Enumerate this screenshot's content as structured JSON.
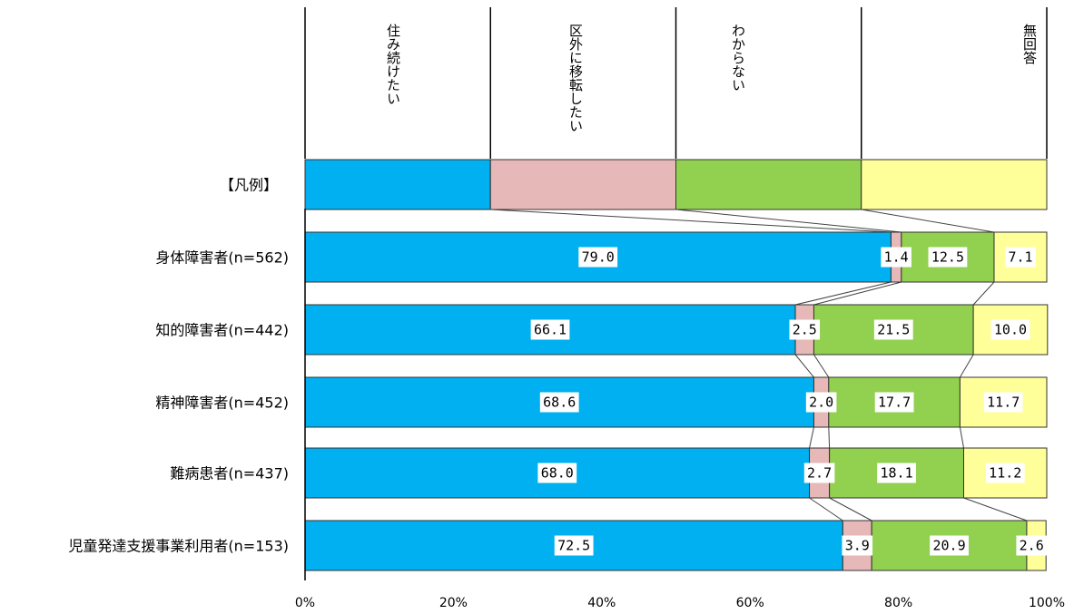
{
  "chart_data": {
    "type": "bar",
    "orientation": "horizontal",
    "stacked": "100%",
    "legend_row_label": "【凡例】",
    "categories": [
      "身体障害者(n=562)",
      "知的障害者(n=442)",
      "精神障害者(n=452)",
      "難病患者(n=437)",
      "児童発達支援事業利用者(n=153)"
    ],
    "series": [
      {
        "name": "住み続けたい",
        "color": "#00b0f0",
        "values": [
          79.0,
          66.1,
          68.6,
          68.0,
          72.5
        ],
        "labels": [
          "79.0",
          "66.1",
          "68.6",
          "68.0",
          "72.5"
        ]
      },
      {
        "name": "区外に移転したい",
        "color": "#e6b8b7",
        "values": [
          1.4,
          2.5,
          2.0,
          2.7,
          3.9
        ],
        "labels": [
          "1.4",
          "2.5",
          "2.0",
          "2.7",
          "3.9"
        ]
      },
      {
        "name": "わからない",
        "color": "#92d050",
        "values": [
          12.5,
          21.5,
          17.7,
          18.1,
          20.9
        ],
        "labels": [
          "12.5",
          "21.5",
          "17.7",
          "18.1",
          "20.9"
        ]
      },
      {
        "name": "無回答",
        "color": "#ffff99",
        "values": [
          7.1,
          10.0,
          11.7,
          11.2,
          2.6
        ],
        "labels": [
          "7.1",
          "10.0",
          "11.7",
          "11.2",
          "2.6"
        ]
      }
    ],
    "xaxis": {
      "ticks": [
        "0%",
        "20%",
        "40%",
        "60%",
        "80%",
        "100%"
      ],
      "range": [
        0,
        100
      ]
    },
    "grid": false,
    "legend_position": "top"
  }
}
